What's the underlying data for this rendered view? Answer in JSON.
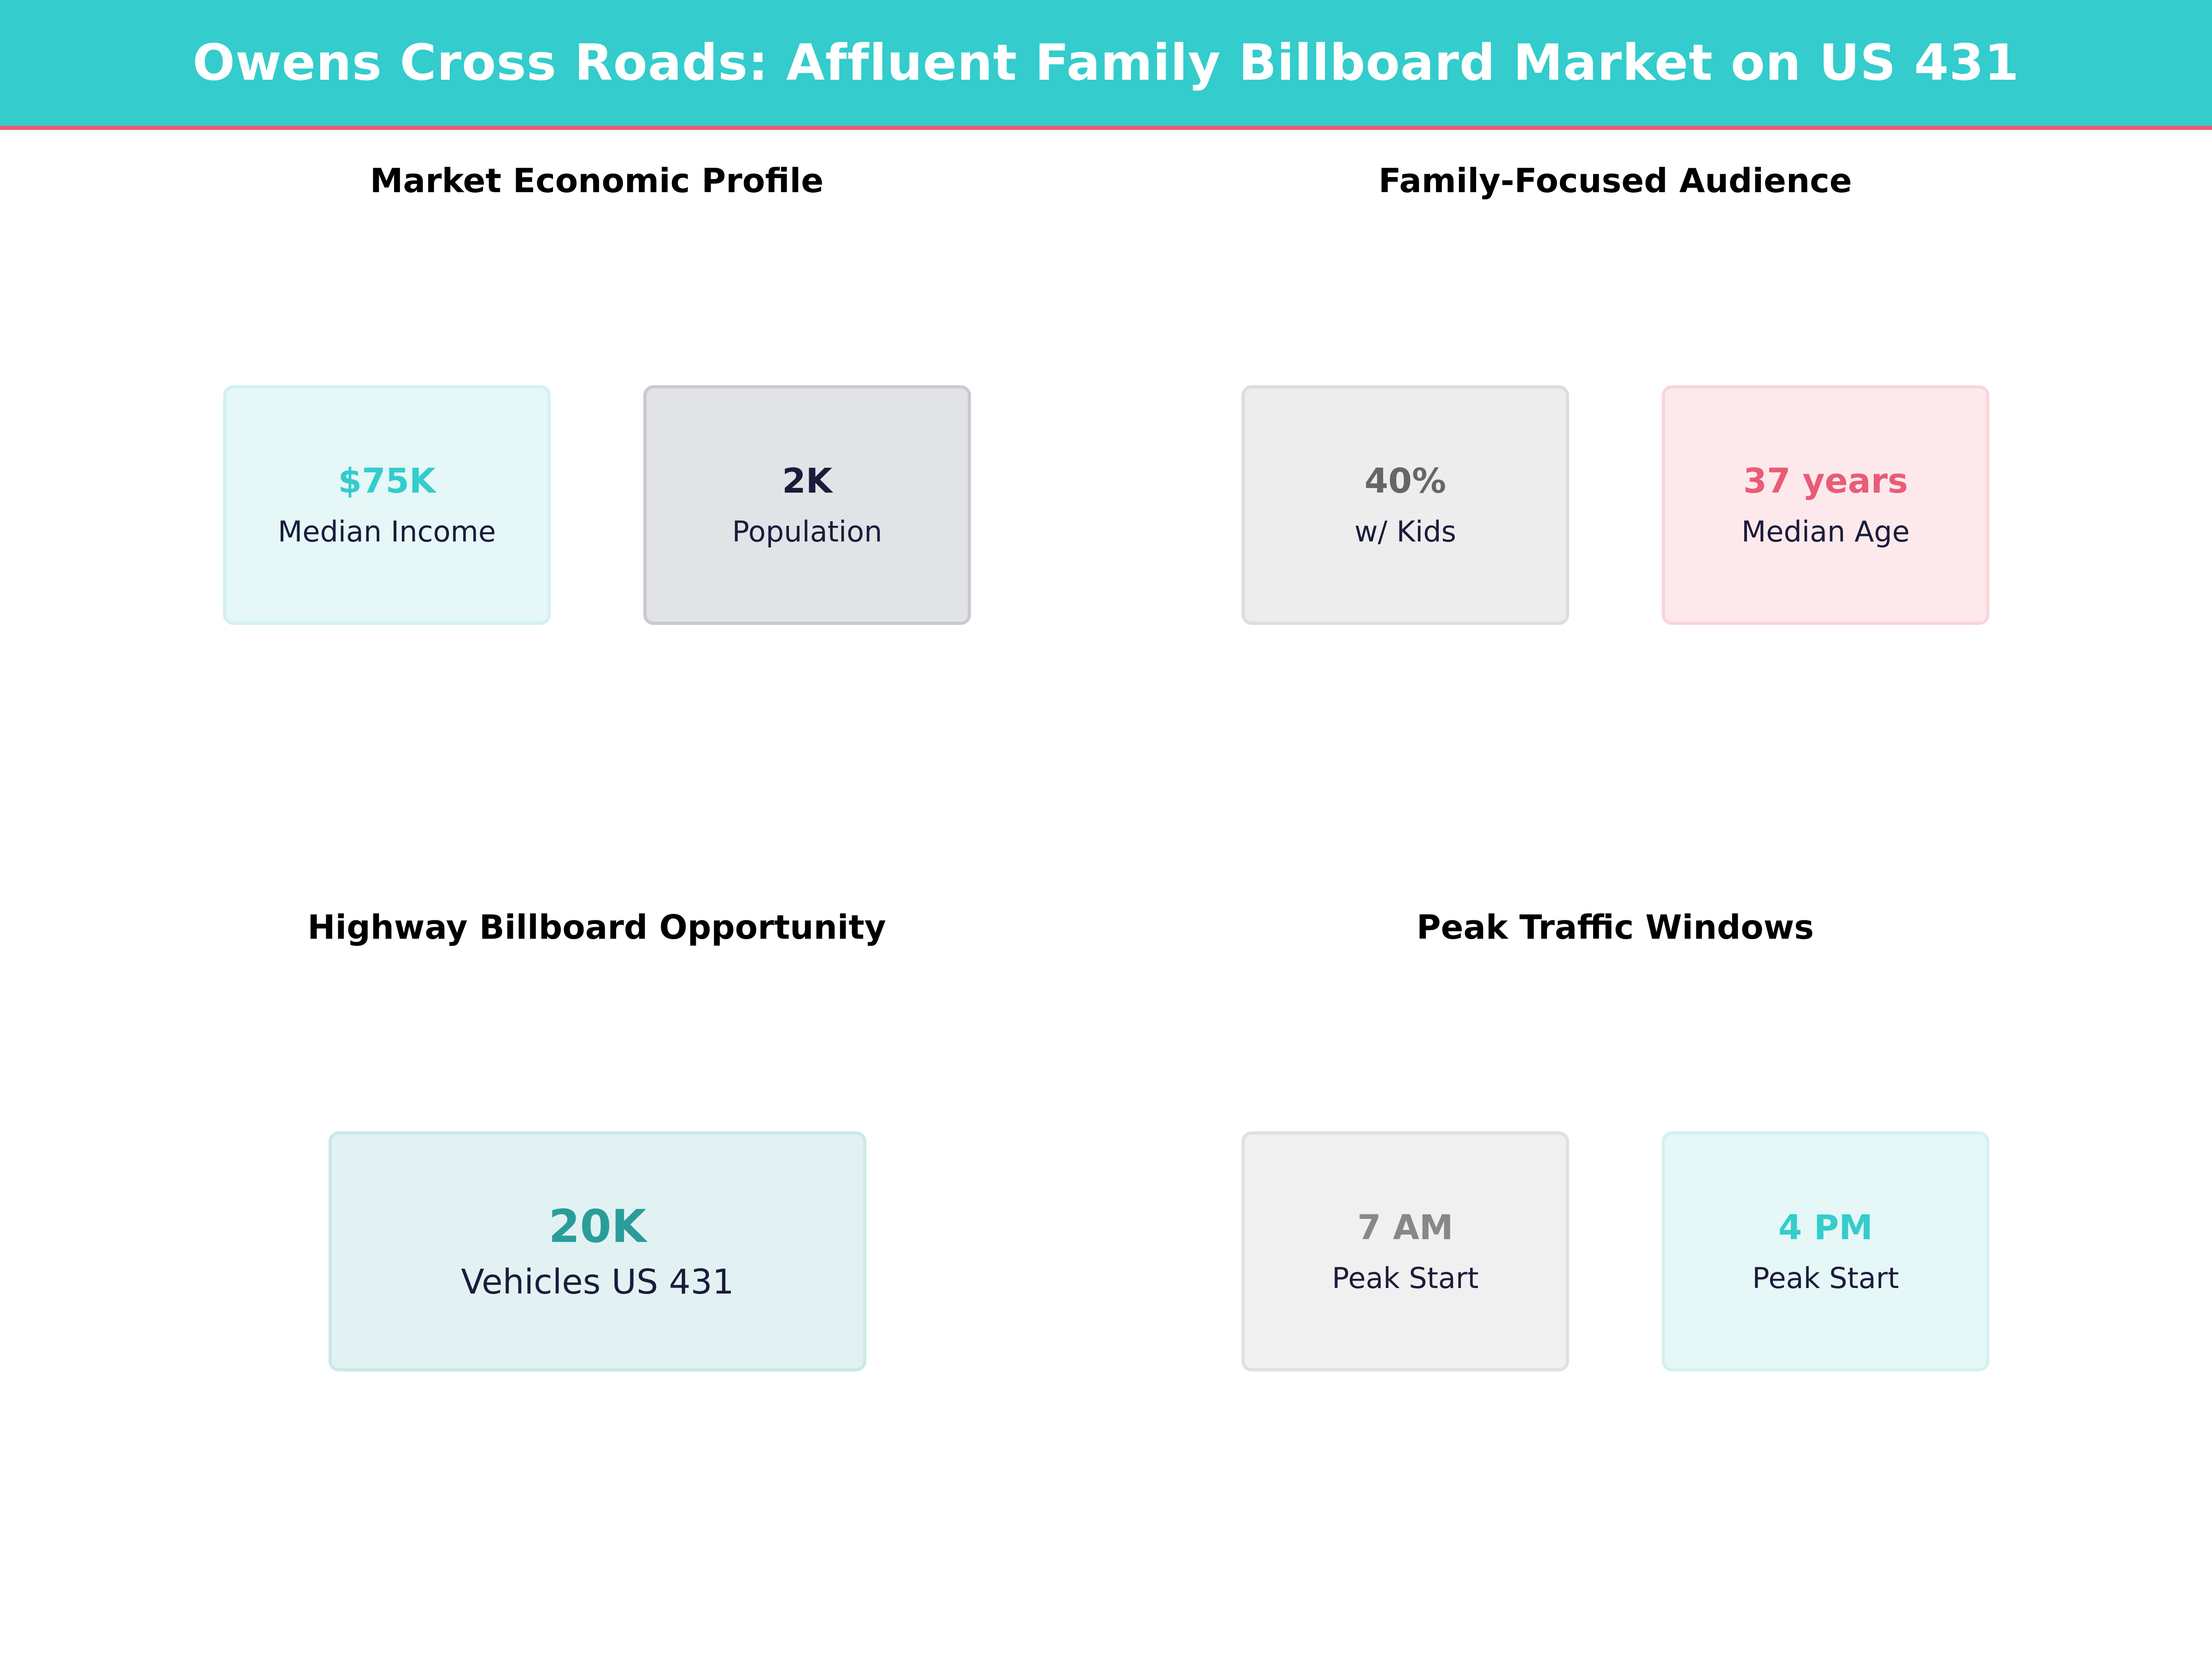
{
  "title": "Owens Cross Roads: Affluent Family Billboard Market on US 431",
  "colors": {
    "header": "#34CCCC",
    "accent_line": "#E85D75"
  },
  "sections": [
    {
      "title": "Market Economic Profile",
      "cards": [
        {
          "value": "$75K",
          "label": "Median Income",
          "color": "#34CCCC"
        },
        {
          "value": "2K",
          "label": "Population",
          "color": "#1B1B3A"
        }
      ]
    },
    {
      "title": "Family-Focused Audience",
      "cards": [
        {
          "value": "40%",
          "label": "w/ Kids",
          "color": "#666666"
        },
        {
          "value": "37 years",
          "label": "Median Age",
          "color": "#E85D75"
        }
      ]
    },
    {
      "title": "Highway Billboard Opportunity",
      "cards": [
        {
          "value": "20K",
          "label": "Vehicles US 431",
          "color": "#2A9D9A"
        }
      ]
    },
    {
      "title": "Peak Traffic Windows",
      "cards": [
        {
          "value": "7 AM",
          "label": "Peak Start",
          "color": "#888888"
        },
        {
          "value": "4 PM",
          "label": "Peak Start",
          "color": "#34CCCC"
        }
      ]
    }
  ]
}
